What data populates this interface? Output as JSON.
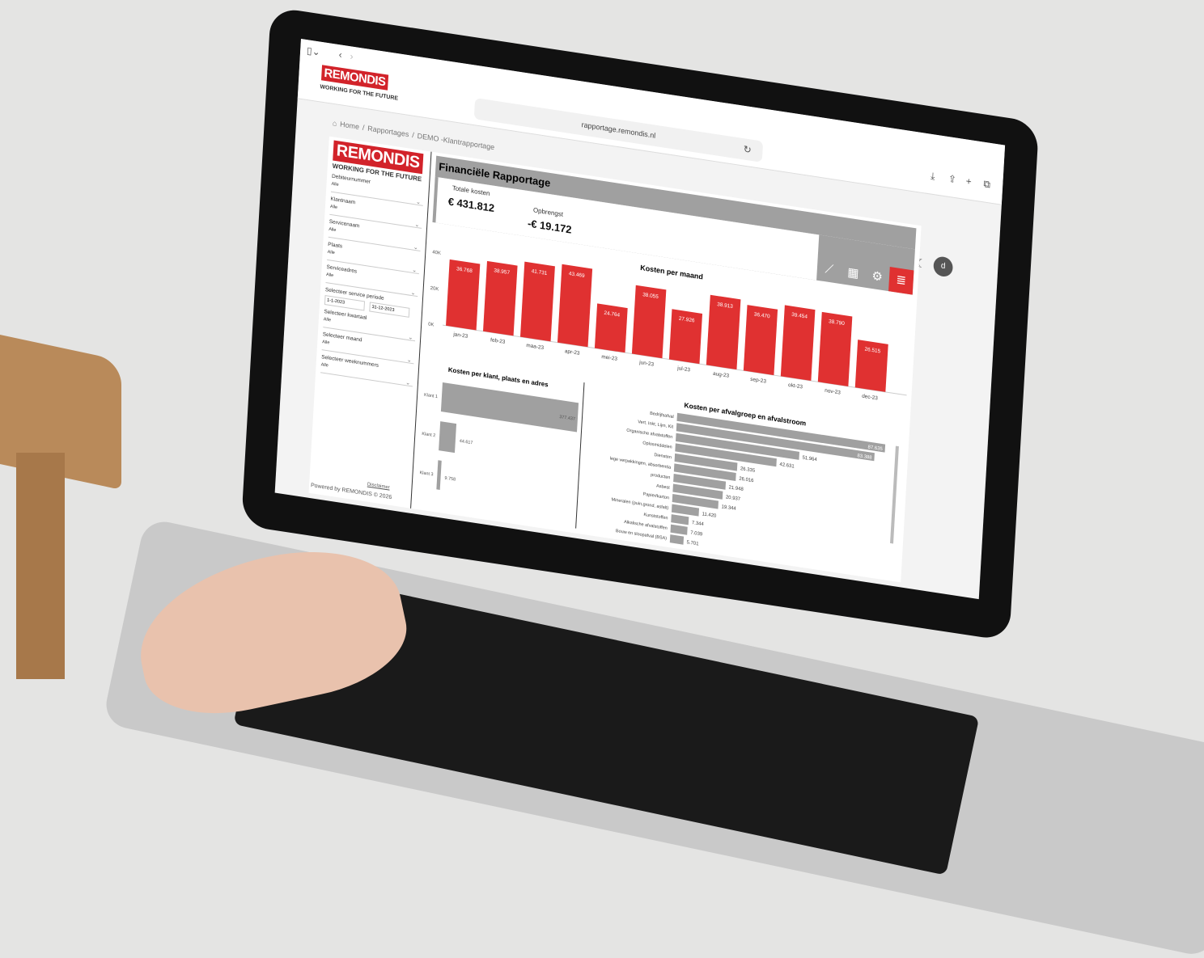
{
  "browser": {
    "url": "rapportage.remondis.nl"
  },
  "brand": {
    "logo": "REMONDIS",
    "tagline": "WORKING FOR THE FUTURE",
    "color": "#d2232a"
  },
  "breadcrumb": [
    "Home",
    "Rapportages",
    "DEMO -Klantrapportage"
  ],
  "user": {
    "avatar": "d"
  },
  "filters": [
    {
      "label": "Debiteurnummer",
      "value": "Alle"
    },
    {
      "label": "Klantnaam",
      "value": "Alle"
    },
    {
      "label": "Servicenaam",
      "value": "Alle"
    },
    {
      "label": "Plaats",
      "value": "Alle"
    },
    {
      "label": "Serviceadres",
      "value": "Alle"
    }
  ],
  "period": {
    "label": "Selecteer service periode",
    "start": "1-1-2023",
    "end": "31-12-2023"
  },
  "filters2": [
    {
      "label": "Selecteer kwartaal",
      "value": "Alle"
    },
    {
      "label": "Selecteer maand",
      "value": "Alle"
    },
    {
      "label": "Selecteer weeknummers",
      "value": "Alle"
    }
  ],
  "footer": {
    "disclaimer": "Disclaimer",
    "powered": "Powered by REMONDIS © 2026"
  },
  "report": {
    "title": "Financiële Rapportage",
    "kpis": [
      {
        "label": "Totale kosten",
        "value": "€ 431.812"
      },
      {
        "label": "Opbrengst",
        "value": "-€ 19.172"
      }
    ]
  },
  "chart_data": [
    {
      "type": "bar",
      "title": "Kosten per maand",
      "categories": [
        "jan-23",
        "feb-23",
        "maa-23",
        "apr-23",
        "mei-23",
        "jun-23",
        "jul-23",
        "aug-23",
        "sep-23",
        "okt-23",
        "nov-23",
        "dec-23"
      ],
      "values": [
        36768,
        38957,
        41731,
        43469,
        24764,
        38055,
        27926,
        38913,
        36470,
        39454,
        38790,
        26515
      ],
      "labels": [
        "36.768",
        "38.957",
        "41.731",
        "43.469",
        "24.764",
        "38.055",
        "27.926",
        "38.913",
        "36.470",
        "39.454",
        "38.790",
        "26.515"
      ],
      "yticks": [
        "0K",
        "20K",
        "40K"
      ],
      "ylim": [
        0,
        45000
      ],
      "color": "#e03131"
    },
    {
      "type": "bar",
      "orientation": "horizontal",
      "title": "Kosten per klant, plaats en adres",
      "categories": [
        "Klant 1",
        "Klant 2",
        "Klant 3"
      ],
      "values": [
        377437,
        44617,
        9758
      ],
      "labels": [
        "377.437",
        "44.617",
        "9.758"
      ],
      "color": "#a0a0a0"
    },
    {
      "type": "bar",
      "orientation": "horizontal",
      "title": "Kosten per afvalgroep en afvalstroom",
      "categories": [
        "Bedrijfsafval",
        "Vert. Inkt, Lijm, Kit",
        "Organische afvalstoffen",
        "Oplosmiddelen",
        "Diensten",
        "lege verpakkingen, absorbentia",
        "producten",
        "Asbest",
        "Papier/karton",
        "Mineralen (puin,grond, asfalt)",
        "Kunststoffen",
        "Alkalische afvalstoffen",
        "Bouw en sloopafval (BSA)"
      ],
      "values": [
        87635,
        83388,
        51964,
        42631,
        26335,
        26016,
        21948,
        20937,
        19344,
        11420,
        7344,
        7039,
        5701
      ],
      "labels": [
        "87.635",
        "83.388",
        "51.964",
        "42.631",
        "26.335",
        "26.016",
        "21.948",
        "20.937",
        "19.344",
        "11.420",
        "7.344",
        "7.039",
        "5.701"
      ],
      "color": "#a0a0a0"
    }
  ]
}
